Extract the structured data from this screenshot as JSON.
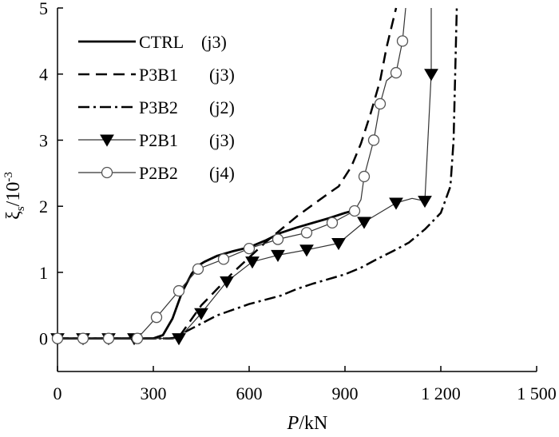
{
  "chart_data": {
    "type": "line",
    "xlabel_italic": "P",
    "xlabel_rest": "/kN",
    "ylabel_main": "ξ",
    "ylabel_sub": "s",
    "ylabel_rest": "/10",
    "ylabel_sup": "-3",
    "xlim": [
      0,
      1500
    ],
    "ylim": [
      -0.5,
      5
    ],
    "x_ticks": [
      0,
      300,
      600,
      900,
      1200,
      1500
    ],
    "x_tick_labels": [
      "0",
      "300",
      "600",
      "900",
      "1 200",
      "1 500"
    ],
    "y_ticks": [
      0,
      1,
      2,
      3,
      4,
      5
    ],
    "y_tick_labels": [
      "0",
      "1",
      "2",
      "3",
      "4",
      "5"
    ],
    "legend_position": "top-left",
    "grid": false,
    "series": [
      {
        "name": "CTRL (j3)",
        "style": "solid",
        "marker": "none",
        "x": [
          0,
          200,
          300,
          330,
          360,
          390,
          420,
          440,
          460,
          500,
          550,
          600,
          650,
          700,
          750,
          800,
          850,
          900,
          940
        ],
        "y": [
          0,
          0,
          0,
          0.05,
          0.3,
          0.7,
          0.98,
          1.1,
          1.16,
          1.25,
          1.32,
          1.38,
          1.48,
          1.6,
          1.68,
          1.75,
          1.82,
          1.9,
          1.95
        ]
      },
      {
        "name": "P3B1 (j3)",
        "style": "dashed",
        "marker": "none",
        "x": [
          0,
          300,
          360,
          380,
          450,
          550,
          650,
          750,
          850,
          880,
          920,
          950,
          980,
          1010,
          1030,
          1060
        ],
        "y": [
          0,
          0,
          0,
          0.02,
          0.5,
          1.0,
          1.45,
          1.85,
          2.2,
          2.3,
          2.6,
          2.95,
          3.4,
          3.9,
          4.4,
          5.0
        ]
      },
      {
        "name": "P3B2 (j2)",
        "style": "dashdot",
        "marker": "none",
        "x": [
          0,
          300,
          350,
          380,
          400,
          500,
          600,
          700,
          750,
          800,
          850,
          900,
          950,
          1000,
          1050,
          1100,
          1150,
          1200,
          1230,
          1240,
          1245,
          1250
        ],
        "y": [
          0,
          0,
          0,
          0.02,
          0.1,
          0.35,
          0.52,
          0.65,
          0.75,
          0.83,
          0.9,
          0.97,
          1.07,
          1.2,
          1.32,
          1.45,
          1.65,
          1.9,
          2.3,
          3.0,
          4.0,
          5.0
        ]
      },
      {
        "name": "P2B1 (j3)",
        "style": "solid-thin",
        "marker": "triangle-down",
        "x": [
          0,
          80,
          160,
          240,
          380,
          450,
          530,
          610,
          690,
          780,
          880,
          960,
          1060,
          1110,
          1150,
          1170,
          1170
        ],
        "y": [
          0,
          0,
          0,
          0,
          0,
          0.38,
          0.86,
          1.16,
          1.26,
          1.34,
          1.44,
          1.76,
          2.05,
          2.12,
          2.08,
          4.0,
          5.0
        ],
        "markers": [
          {
            "x": 0,
            "y": 0
          },
          {
            "x": 80,
            "y": 0
          },
          {
            "x": 160,
            "y": 0
          },
          {
            "x": 240,
            "y": 0
          },
          {
            "x": 380,
            "y": 0
          },
          {
            "x": 450,
            "y": 0.38
          },
          {
            "x": 530,
            "y": 0.86
          },
          {
            "x": 610,
            "y": 1.16
          },
          {
            "x": 690,
            "y": 1.26
          },
          {
            "x": 780,
            "y": 1.34
          },
          {
            "x": 880,
            "y": 1.44
          },
          {
            "x": 960,
            "y": 1.76
          },
          {
            "x": 1060,
            "y": 2.05
          },
          {
            "x": 1150,
            "y": 2.08
          },
          {
            "x": 1170,
            "y": 4.0
          }
        ]
      },
      {
        "name": "P2B2 (j4)",
        "style": "solid-thin",
        "marker": "circle-open",
        "x": [
          0,
          80,
          160,
          250,
          310,
          380,
          440,
          520,
          600,
          690,
          780,
          860,
          930,
          950,
          960,
          990,
          1010,
          1030,
          1060,
          1080,
          1090
        ],
        "y": [
          0,
          0,
          0,
          0,
          0.32,
          0.72,
          1.05,
          1.2,
          1.36,
          1.5,
          1.6,
          1.75,
          1.93,
          2.1,
          2.45,
          3.0,
          3.55,
          3.9,
          4.02,
          4.5,
          5.0
        ],
        "markers": [
          {
            "x": 0,
            "y": 0
          },
          {
            "x": 80,
            "y": 0
          },
          {
            "x": 160,
            "y": 0
          },
          {
            "x": 250,
            "y": 0
          },
          {
            "x": 310,
            "y": 0.32
          },
          {
            "x": 380,
            "y": 0.72
          },
          {
            "x": 440,
            "y": 1.05
          },
          {
            "x": 520,
            "y": 1.2
          },
          {
            "x": 600,
            "y": 1.36
          },
          {
            "x": 690,
            "y": 1.5
          },
          {
            "x": 780,
            "y": 1.6
          },
          {
            "x": 860,
            "y": 1.75
          },
          {
            "x": 930,
            "y": 1.93
          },
          {
            "x": 960,
            "y": 2.45
          },
          {
            "x": 990,
            "y": 3.0
          },
          {
            "x": 1010,
            "y": 3.55
          },
          {
            "x": 1060,
            "y": 4.02
          },
          {
            "x": 1080,
            "y": 4.5
          }
        ]
      }
    ],
    "legend": [
      {
        "label": "CTRL",
        "joint": "(j3)"
      },
      {
        "label": "P3B1",
        "joint": "(j3)"
      },
      {
        "label": "P3B2",
        "joint": "(j2)"
      },
      {
        "label": "P2B1",
        "joint": "(j3)"
      },
      {
        "label": "P2B2",
        "joint": "(j4)"
      }
    ]
  }
}
